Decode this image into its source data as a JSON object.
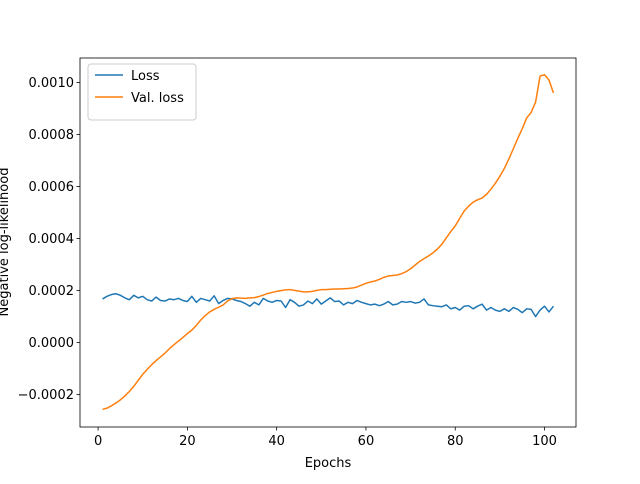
{
  "chart_data": {
    "type": "line",
    "xlabel": "Epochs",
    "ylabel": "Negative log-likelihood",
    "x": [
      1,
      2,
      3,
      4,
      5,
      6,
      7,
      8,
      9,
      10,
      11,
      12,
      13,
      14,
      15,
      16,
      17,
      18,
      19,
      20,
      21,
      22,
      23,
      24,
      25,
      26,
      27,
      28,
      29,
      30,
      31,
      32,
      33,
      34,
      35,
      36,
      37,
      38,
      39,
      40,
      41,
      42,
      43,
      44,
      45,
      46,
      47,
      48,
      49,
      50,
      51,
      52,
      53,
      54,
      55,
      56,
      57,
      58,
      59,
      60,
      61,
      62,
      63,
      64,
      65,
      66,
      67,
      68,
      69,
      70,
      71,
      72,
      73,
      74,
      75,
      76,
      77,
      78,
      79,
      80,
      81,
      82,
      83,
      84,
      85,
      86,
      87,
      88,
      89,
      90,
      91,
      92,
      93,
      94,
      95,
      96,
      97,
      98,
      99,
      100,
      101,
      102
    ],
    "series": [
      {
        "name": "Loss",
        "color": "#1f77b4",
        "values": [
          0.000168,
          0.000178,
          0.000185,
          0.000188,
          0.000182,
          0.000172,
          0.000165,
          0.000182,
          0.000172,
          0.000178,
          0.000165,
          0.00016,
          0.000175,
          0.000162,
          0.00016,
          0.000168,
          0.000165,
          0.00017,
          0.000162,
          0.000158,
          0.000178,
          0.000155,
          0.00017,
          0.000165,
          0.00016,
          0.00018,
          0.00015,
          0.000162,
          0.00017,
          0.000168,
          0.000162,
          0.000158,
          0.00015,
          0.00014,
          0.000155,
          0.000145,
          0.00017,
          0.00016,
          0.000155,
          0.000162,
          0.00016,
          0.000135,
          0.000165,
          0.000155,
          0.00014,
          0.000145,
          0.00016,
          0.00015,
          0.000168,
          0.000148,
          0.00016,
          0.000172,
          0.000158,
          0.00016,
          0.000145,
          0.000155,
          0.00015,
          0.000162,
          0.000155,
          0.00015,
          0.000145,
          0.000148,
          0.000142,
          0.000148,
          0.000158,
          0.000145,
          0.000148,
          0.000158,
          0.000155,
          0.000158,
          0.000152,
          0.000155,
          0.000168,
          0.000145,
          0.000142,
          0.00014,
          0.000138,
          0.000145,
          0.00013,
          0.000135,
          0.000125,
          0.00014,
          0.000142,
          0.00013,
          0.00014,
          0.000148,
          0.000125,
          0.000135,
          0.000125,
          0.00012,
          0.00013,
          0.00012,
          0.000135,
          0.000128,
          0.000115,
          0.00013,
          0.000128,
          0.0001,
          0.000125,
          0.00014,
          0.000118,
          0.00014
        ]
      },
      {
        "name": "Val. loss",
        "color": "#ff7f0e",
        "values": [
          -0.000257,
          -0.000252,
          -0.000243,
          -0.000232,
          -0.00022,
          -0.000205,
          -0.000188,
          -0.000168,
          -0.000145,
          -0.000122,
          -0.000103,
          -8.5e-05,
          -6.9e-05,
          -5.5e-05,
          -4e-05,
          -2.3e-05,
          -8e-06,
          6e-06,
          2e-05,
          3.5e-05,
          4.8e-05,
          6.6e-05,
          8.7e-05,
          0.000104,
          0.000118,
          0.000128,
          0.000136,
          0.000145,
          0.00016,
          0.000169,
          0.000172,
          0.000171,
          0.00017,
          0.000172,
          0.000173,
          0.000177,
          0.000183,
          0.000189,
          0.000193,
          0.000197,
          0.0002,
          0.000203,
          0.000204,
          0.000201,
          0.000198,
          0.000195,
          0.000195,
          0.000197,
          0.000201,
          0.000204,
          0.000204,
          0.000205,
          0.000206,
          0.000206,
          0.000207,
          0.000208,
          0.00021,
          0.000214,
          0.000221,
          0.000228,
          0.000233,
          0.000237,
          0.000243,
          0.000251,
          0.000256,
          0.000258,
          0.00026,
          0.000265,
          0.000273,
          0.000284,
          0.000298,
          0.000312,
          0.000323,
          0.000333,
          0.000345,
          0.00036,
          0.000378,
          0.000403,
          0.000427,
          0.000449,
          0.000478,
          0.000506,
          0.000525,
          0.00054,
          0.000549,
          0.000556,
          0.00057,
          0.00059,
          0.000613,
          0.00064,
          0.00067,
          0.000706,
          0.000745,
          0.000785,
          0.000822,
          0.000864,
          0.000885,
          0.000925,
          0.001025,
          0.00103,
          0.00101,
          0.00096
        ]
      }
    ],
    "xlim": [
      -4.05,
      107.05
    ],
    "xticks": [
      0,
      20,
      40,
      60,
      80,
      100
    ],
    "ylim": [
      -0.0003245,
      0.0010945
    ],
    "yticks": [
      {
        "value": -0.0002,
        "label": "−0.0002"
      },
      {
        "value": 0,
        "label": "0.0000"
      },
      {
        "value": 0.0002,
        "label": "0.0002"
      },
      {
        "value": 0.0004,
        "label": "0.0004"
      },
      {
        "value": 0.0006,
        "label": "0.0006"
      },
      {
        "value": 0.0008,
        "label": "0.0008"
      },
      {
        "value": 0.001,
        "label": "0.0010"
      }
    ],
    "legend": "upper left"
  }
}
